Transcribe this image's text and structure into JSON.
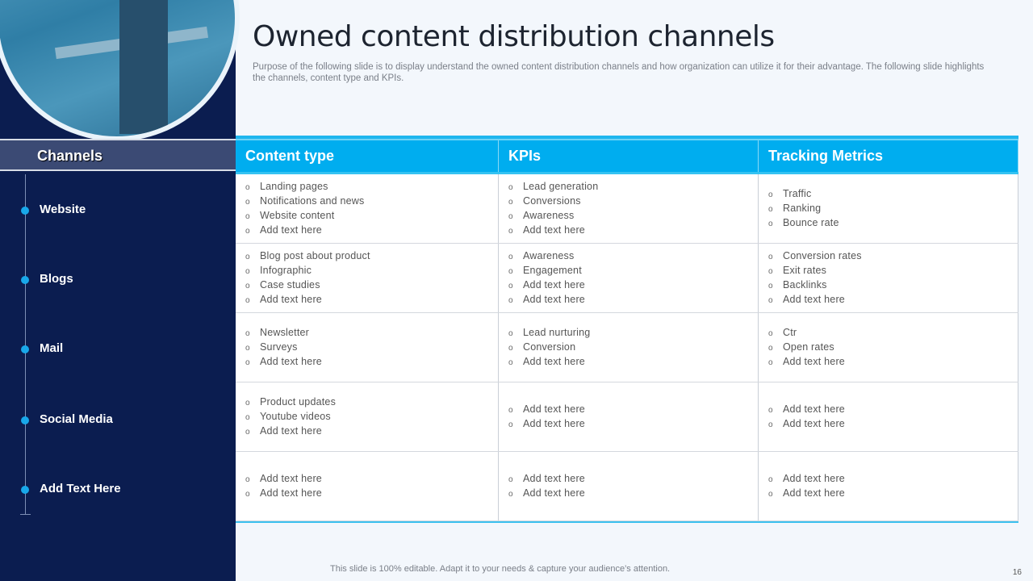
{
  "title": "Owned content distribution channels",
  "subtitle": "Purpose of the following slide is to display understand the owned content distribution channels and how organization can utilize it for their advantage. The following slide highlights the channels, content type and KPIs.",
  "headers": [
    "Channels",
    "Content type",
    "KPIs",
    "Tracking Metrics"
  ],
  "rows": [
    {
      "channel": "Website",
      "content": [
        "Landing pages",
        "Notifications and news",
        "Website content",
        "Add text here"
      ],
      "kpis": [
        "Lead generation",
        "Conversions",
        "Awareness",
        "Add text here"
      ],
      "metrics": [
        "Traffic",
        "Ranking",
        "Bounce rate"
      ]
    },
    {
      "channel": "Blogs",
      "content": [
        "Blog post about product",
        "Infographic",
        "Case studies",
        "Add text here"
      ],
      "kpis": [
        "Awareness",
        "Engagement",
        "Add text here",
        "Add text here"
      ],
      "metrics": [
        "Conversion  rates",
        "Exit rates",
        "Backlinks",
        "Add text here"
      ]
    },
    {
      "channel": "Mail",
      "content": [
        "Newsletter",
        "Surveys",
        "Add text here"
      ],
      "kpis": [
        "Lead nurturing",
        "Conversion",
        "Add text here"
      ],
      "metrics": [
        "Ctr",
        "Open rates",
        "Add text here"
      ]
    },
    {
      "channel": "Social Media",
      "content": [
        "Product updates",
        "Youtube videos",
        "Add text here"
      ],
      "kpis": [
        "Add text here",
        "Add text here"
      ],
      "metrics": [
        "Add text here",
        "Add text here"
      ]
    },
    {
      "channel": "Add Text Here",
      "content": [
        "Add text here",
        "Add text here"
      ],
      "kpis": [
        "Add text here",
        "Add text here"
      ],
      "metrics": [
        "Add text here",
        "Add text here"
      ]
    }
  ],
  "bullet": "o",
  "footer": "This slide is 100% editable. Adapt it to your needs & capture your audience’s attention.",
  "page_number": "16",
  "colors": {
    "navy": "#0b1d50",
    "accent": "#00adef",
    "header_left": "#3b4a74"
  }
}
